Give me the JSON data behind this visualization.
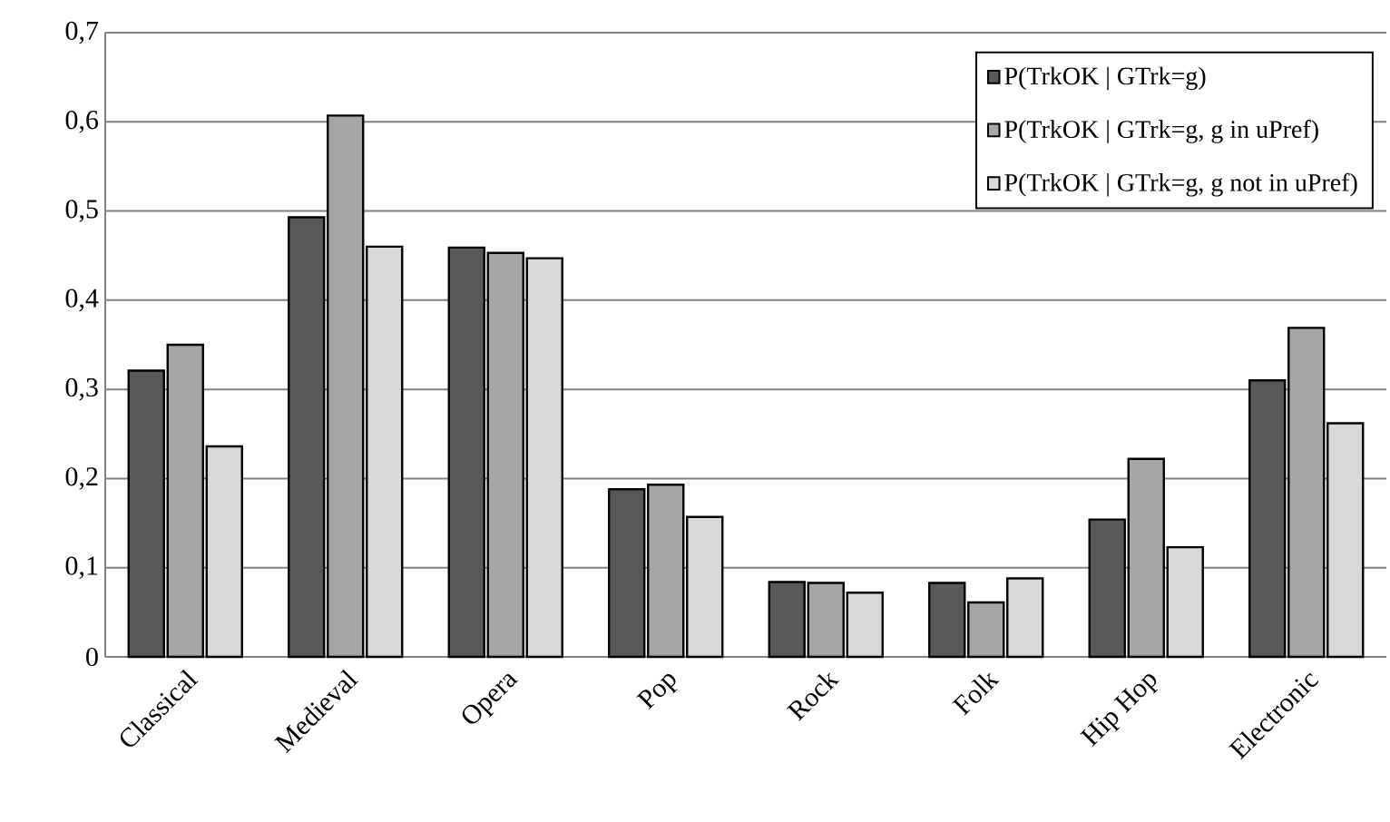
{
  "chart_data": {
    "type": "bar",
    "categories": [
      "Classical",
      "Medieval",
      "Opera",
      "Pop",
      "Rock",
      "Folk",
      "Hip Hop",
      "Electronic"
    ],
    "series": [
      {
        "name": "P(TrkOK | GTrk=g)",
        "color": "#595959",
        "values": [
          0.321,
          0.493,
          0.459,
          0.188,
          0.084,
          0.083,
          0.154,
          0.31
        ]
      },
      {
        "name": "P(TrkOK | GTrk=g, g in uPref)",
        "color": "#a6a6a6",
        "values": [
          0.35,
          0.607,
          0.453,
          0.193,
          0.083,
          0.061,
          0.222,
          0.369
        ]
      },
      {
        "name": "P(TrkOK | GTrk=g, g not in uPref)",
        "color": "#d9d9d9",
        "values": [
          0.236,
          0.46,
          0.447,
          0.157,
          0.072,
          0.088,
          0.123,
          0.262
        ]
      }
    ],
    "ylim": [
      0,
      0.7
    ],
    "yticks": [
      {
        "value": 0,
        "label": "0"
      },
      {
        "value": 0.1,
        "label": "0,1"
      },
      {
        "value": 0.2,
        "label": "0,2"
      },
      {
        "value": 0.3,
        "label": "0,3"
      },
      {
        "value": 0.4,
        "label": "0,4"
      },
      {
        "value": 0.5,
        "label": "0,5"
      },
      {
        "value": 0.6,
        "label": "0,6"
      },
      {
        "value": 0.7,
        "label": "0,7"
      }
    ],
    "grid": "y",
    "legend": "top right"
  }
}
